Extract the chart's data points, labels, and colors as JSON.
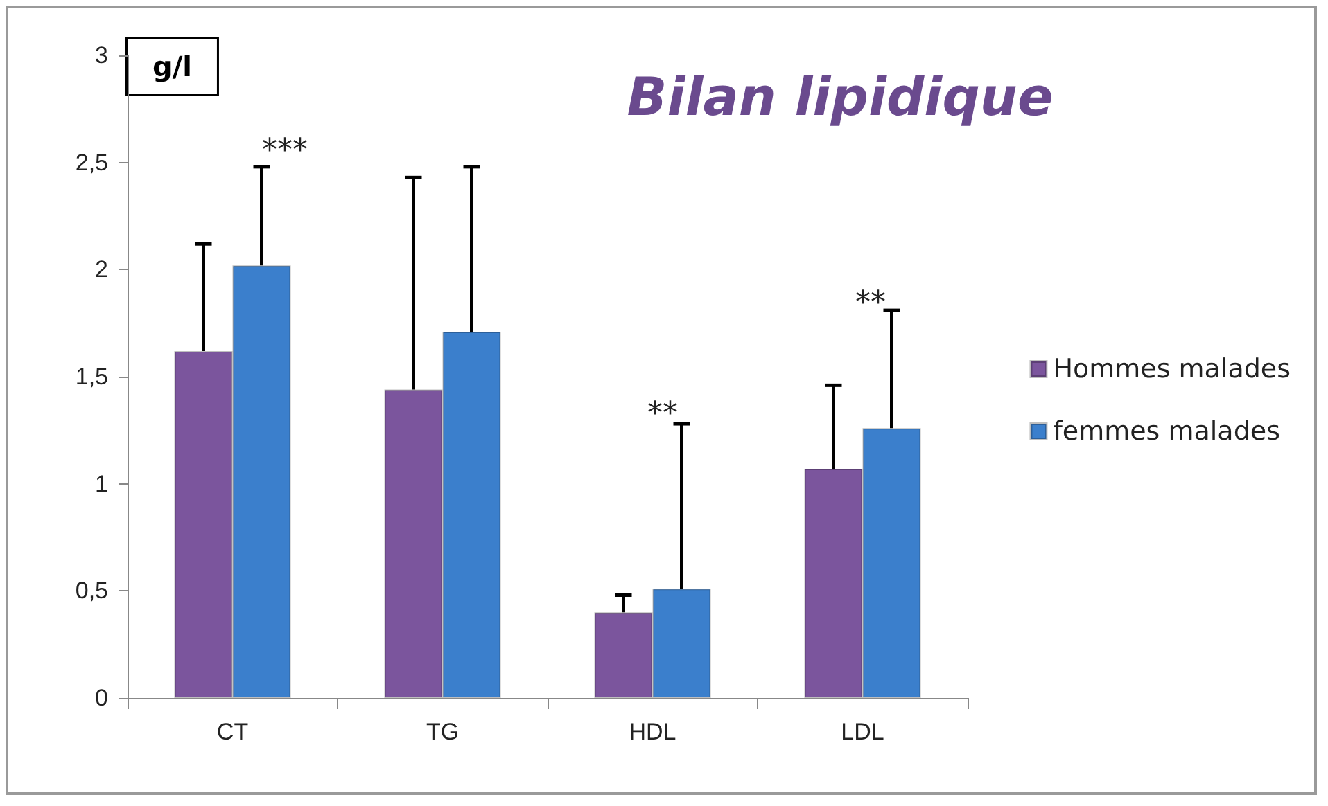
{
  "chart_data": {
    "type": "bar",
    "title": "Bilan lipidique",
    "ylabel": "g/l",
    "categories": [
      "CT",
      "TG",
      "HDL",
      "LDL"
    ],
    "series": [
      {
        "name": "Hommes malades",
        "color": "#7b559d",
        "values": [
          1.62,
          1.44,
          0.4,
          1.07
        ],
        "errors": [
          [
            1.62,
            2.12
          ],
          [
            1.44,
            2.43
          ],
          [
            0.4,
            0.48
          ],
          [
            1.07,
            1.46
          ]
        ]
      },
      {
        "name": "femmes malades",
        "color": "#3b7fcc",
        "values": [
          2.02,
          1.71,
          0.51,
          1.26
        ],
        "errors": [
          [
            2.02,
            2.48
          ],
          [
            1.71,
            2.48
          ],
          [
            0.51,
            1.28
          ],
          [
            1.26,
            1.81
          ]
        ]
      }
    ],
    "ylim": [
      0,
      3
    ],
    "yticks": [
      0,
      {
        "value": 0.5,
        "label": "0,5"
      },
      1,
      {
        "value": 1.5,
        "label": "1,5"
      },
      2,
      {
        "value": 2.5,
        "label": "2,5"
      },
      3
    ],
    "annotations": [
      "***",
      "**",
      "**"
    ],
    "grid": false,
    "legend": "right"
  }
}
